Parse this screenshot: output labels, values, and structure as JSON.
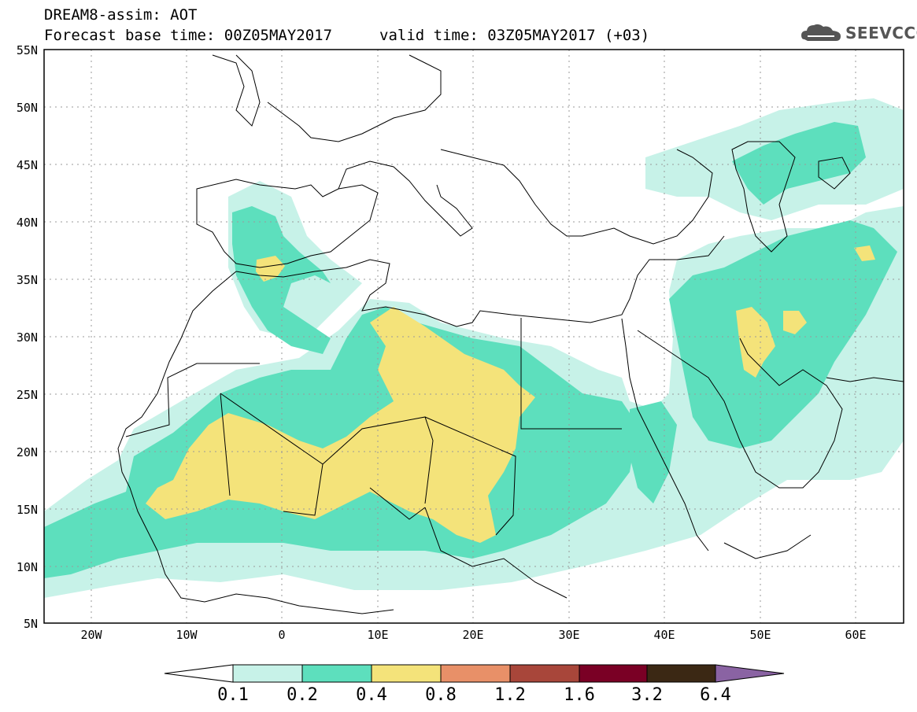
{
  "header": {
    "title": "DREAM8-assim: AOT",
    "base_time": "Forecast base time: 00Z05MAY2017",
    "valid_time": "valid time: 03Z05MAY2017 (+03)"
  },
  "logo": {
    "text": "SEEVCCC",
    "icon": "cloud-icon"
  },
  "map": {
    "variable": "Aerosol optical thickness (AOT)",
    "lat_labels": [
      "55N",
      "50N",
      "45N",
      "40N",
      "35N",
      "30N",
      "25N",
      "20N",
      "15N",
      "10N",
      "5N"
    ],
    "lon_labels": [
      "20W",
      "10W",
      "0",
      "10E",
      "20E",
      "30E",
      "40E",
      "50E",
      "60E"
    ],
    "gridlines": "dotted"
  },
  "colorbar": {
    "labels": [
      "0.1",
      "0.2",
      "0.4",
      "0.8",
      "1.2",
      "1.6",
      "3.2",
      "6.4"
    ],
    "colors": [
      "#ffffff",
      "#c7f2e8",
      "#5ddfbd",
      "#f4e37a",
      "#e89068",
      "#a8463a",
      "#7a0025",
      "#3b2814",
      "#8a63a3"
    ]
  }
}
